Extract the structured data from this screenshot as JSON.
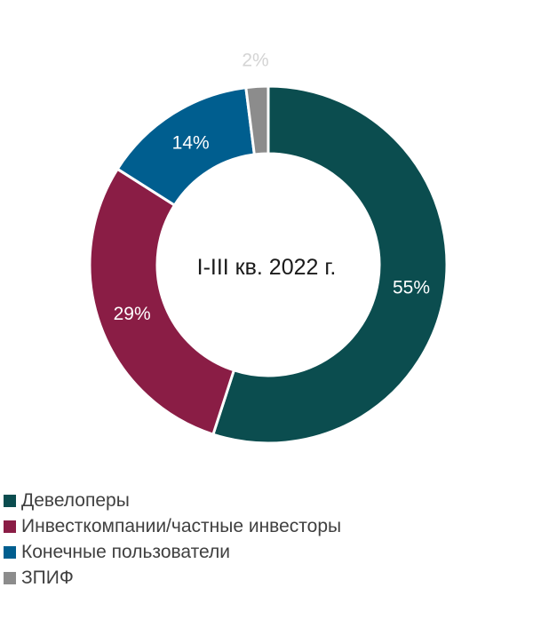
{
  "chart_data": {
    "type": "pie",
    "variant": "donut",
    "center_label": "I-III кв. 2022 г.",
    "slices": [
      {
        "name": "Девелоперы",
        "value": 55,
        "label": "55%",
        "color": "#0b4d4f"
      },
      {
        "name": "Инвесткомпании/частные инвесторы",
        "value": 29,
        "label": "29%",
        "color": "#8a1d45"
      },
      {
        "name": "Конечные пользователи",
        "value": 14,
        "label": "14%",
        "color": "#005e8f"
      },
      {
        "name": "ЗПИФ",
        "value": 2,
        "label": "2%",
        "color": "#8c8c8c"
      }
    ],
    "legend_position": "bottom-left"
  }
}
